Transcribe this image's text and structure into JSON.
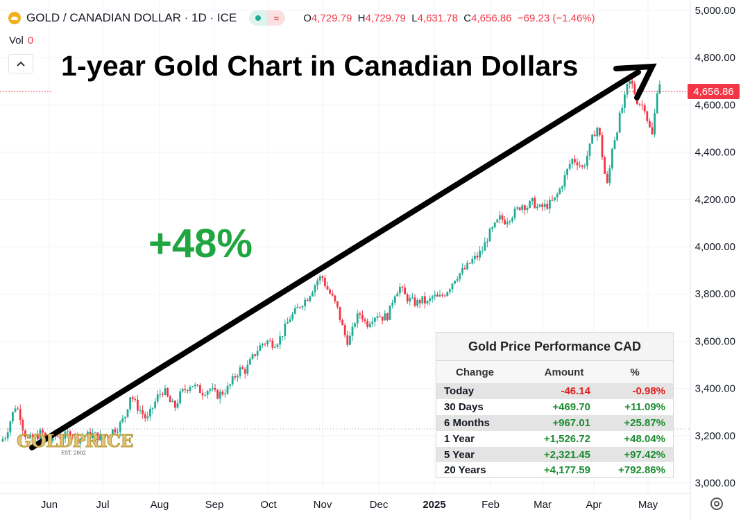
{
  "header": {
    "symbol": "GOLD / CANADIAN DOLLAR · 1D · ICE",
    "approx_symbol": "≈",
    "open_label": "O",
    "open": "4,729.79",
    "high_label": "H",
    "high": "4,729.79",
    "low_label": "L",
    "low": "4,631.78",
    "close_label": "C",
    "close": "4,656.86",
    "change": "−69.23 (−1.46%)",
    "vol_label": "Vol",
    "vol_value": "0",
    "collapse_icon": "chevron-up-icon"
  },
  "annotation": {
    "title": "1-year Gold Chart in Canadian Dollars",
    "gain": "+48%"
  },
  "logo": {
    "text": "GOLDPRICE",
    "sub": "EST. 2002"
  },
  "last_price": "4,656.86",
  "settings_icon": "gear-icon",
  "colors": {
    "up": "#22ab94",
    "down": "#f23645",
    "gain_text": "#1fa640",
    "arrow": "#000000"
  },
  "performance": {
    "title": "Gold Price Performance CAD",
    "headers": [
      "Change",
      "Amount",
      "%"
    ],
    "rows": [
      {
        "period": "Today",
        "amount": "-46.14",
        "pct": "-0.98%",
        "dir": "neg"
      },
      {
        "period": "30 Days",
        "amount": "+469.70",
        "pct": "+11.09%",
        "dir": "pos"
      },
      {
        "period": "6 Months",
        "amount": "+967.01",
        "pct": "+25.87%",
        "dir": "pos"
      },
      {
        "period": "1 Year",
        "amount": "+1,526.72",
        "pct": "+48.04%",
        "dir": "pos"
      },
      {
        "period": "5 Year",
        "amount": "+2,321.45",
        "pct": "+97.42%",
        "dir": "pos"
      },
      {
        "period": "20 Years",
        "amount": "+4,177.59",
        "pct": "+792.86%",
        "dir": "pos"
      }
    ]
  },
  "chart_data": {
    "type": "candlestick",
    "ylim": [
      2940,
      5040
    ],
    "y_ticks": [
      "3,000.00",
      "3,200.00",
      "3,400.00",
      "3,600.00",
      "3,800.00",
      "4,000.00",
      "4,200.00",
      "4,400.00",
      "4,600.00",
      "4,800.00",
      "5,000.00"
    ],
    "x_ticks": [
      "Jun",
      "Jul",
      "Aug",
      "Sep",
      "Oct",
      "Nov",
      "Dec",
      "2025",
      "Feb",
      "Mar",
      "Apr",
      "May"
    ],
    "grid": true,
    "price_series": [
      [
        0,
        3175
      ],
      [
        8,
        3200
      ],
      [
        16,
        3275
      ],
      [
        22,
        3325
      ],
      [
        28,
        3300
      ],
      [
        34,
        3220
      ],
      [
        40,
        3185
      ],
      [
        50,
        3190
      ],
      [
        60,
        3215
      ],
      [
        70,
        3175
      ],
      [
        80,
        3200
      ],
      [
        92,
        3195
      ],
      [
        102,
        3220
      ],
      [
        112,
        3185
      ],
      [
        122,
        3200
      ],
      [
        134,
        3205
      ],
      [
        146,
        3190
      ],
      [
        158,
        3215
      ],
      [
        170,
        3235
      ],
      [
        180,
        3280
      ],
      [
        188,
        3375
      ],
      [
        196,
        3330
      ],
      [
        204,
        3300
      ],
      [
        212,
        3265
      ],
      [
        220,
        3320
      ],
      [
        228,
        3370
      ],
      [
        236,
        3395
      ],
      [
        244,
        3345
      ],
      [
        252,
        3320
      ],
      [
        260,
        3375
      ],
      [
        268,
        3400
      ],
      [
        276,
        3420
      ],
      [
        284,
        3400
      ],
      [
        292,
        3385
      ],
      [
        302,
        3400
      ],
      [
        312,
        3370
      ],
      [
        322,
        3385
      ],
      [
        330,
        3405
      ],
      [
        338,
        3450
      ],
      [
        346,
        3480
      ],
      [
        354,
        3475
      ],
      [
        362,
        3520
      ],
      [
        370,
        3560
      ],
      [
        378,
        3590
      ],
      [
        386,
        3600
      ],
      [
        394,
        3590
      ],
      [
        402,
        3605
      ],
      [
        410,
        3650
      ],
      [
        418,
        3700
      ],
      [
        426,
        3725
      ],
      [
        434,
        3760
      ],
      [
        442,
        3780
      ],
      [
        450,
        3820
      ],
      [
        458,
        3860
      ],
      [
        464,
        3875
      ],
      [
        470,
        3830
      ],
      [
        478,
        3790
      ],
      [
        486,
        3740
      ],
      [
        494,
        3655
      ],
      [
        500,
        3600
      ],
      [
        506,
        3620
      ],
      [
        512,
        3690
      ],
      [
        520,
        3720
      ],
      [
        528,
        3670
      ],
      [
        536,
        3700
      ],
      [
        544,
        3715
      ],
      [
        552,
        3700
      ],
      [
        560,
        3710
      ],
      [
        568,
        3800
      ],
      [
        576,
        3830
      ],
      [
        584,
        3790
      ],
      [
        592,
        3770
      ],
      [
        600,
        3760
      ],
      [
        608,
        3775
      ],
      [
        616,
        3760
      ],
      [
        624,
        3790
      ],
      [
        632,
        3780
      ],
      [
        640,
        3800
      ],
      [
        648,
        3830
      ],
      [
        656,
        3870
      ],
      [
        664,
        3890
      ],
      [
        672,
        3910
      ],
      [
        680,
        3940
      ],
      [
        688,
        3960
      ],
      [
        696,
        3990
      ],
      [
        704,
        4050
      ],
      [
        712,
        4080
      ],
      [
        720,
        4120
      ],
      [
        728,
        4110
      ],
      [
        736,
        4130
      ],
      [
        744,
        4150
      ],
      [
        752,
        4180
      ],
      [
        760,
        4170
      ],
      [
        768,
        4190
      ],
      [
        776,
        4160
      ],
      [
        784,
        4170
      ],
      [
        792,
        4180
      ],
      [
        800,
        4200
      ],
      [
        808,
        4250
      ],
      [
        816,
        4310
      ],
      [
        824,
        4370
      ],
      [
        832,
        4360
      ],
      [
        840,
        4330
      ],
      [
        848,
        4400
      ],
      [
        856,
        4480
      ],
      [
        862,
        4510
      ],
      [
        866,
        4430
      ],
      [
        872,
        4300
      ],
      [
        876,
        4250
      ],
      [
        882,
        4420
      ],
      [
        888,
        4480
      ],
      [
        894,
        4560
      ],
      [
        900,
        4620
      ],
      [
        906,
        4700
      ],
      [
        912,
        4680
      ],
      [
        918,
        4620
      ],
      [
        924,
        4600
      ],
      [
        930,
        4590
      ],
      [
        934,
        4520
      ],
      [
        940,
        4470
      ],
      [
        944,
        4570
      ],
      [
        948,
        4690
      ],
      [
        952,
        4700
      ],
      [
        955,
        4657
      ]
    ]
  }
}
